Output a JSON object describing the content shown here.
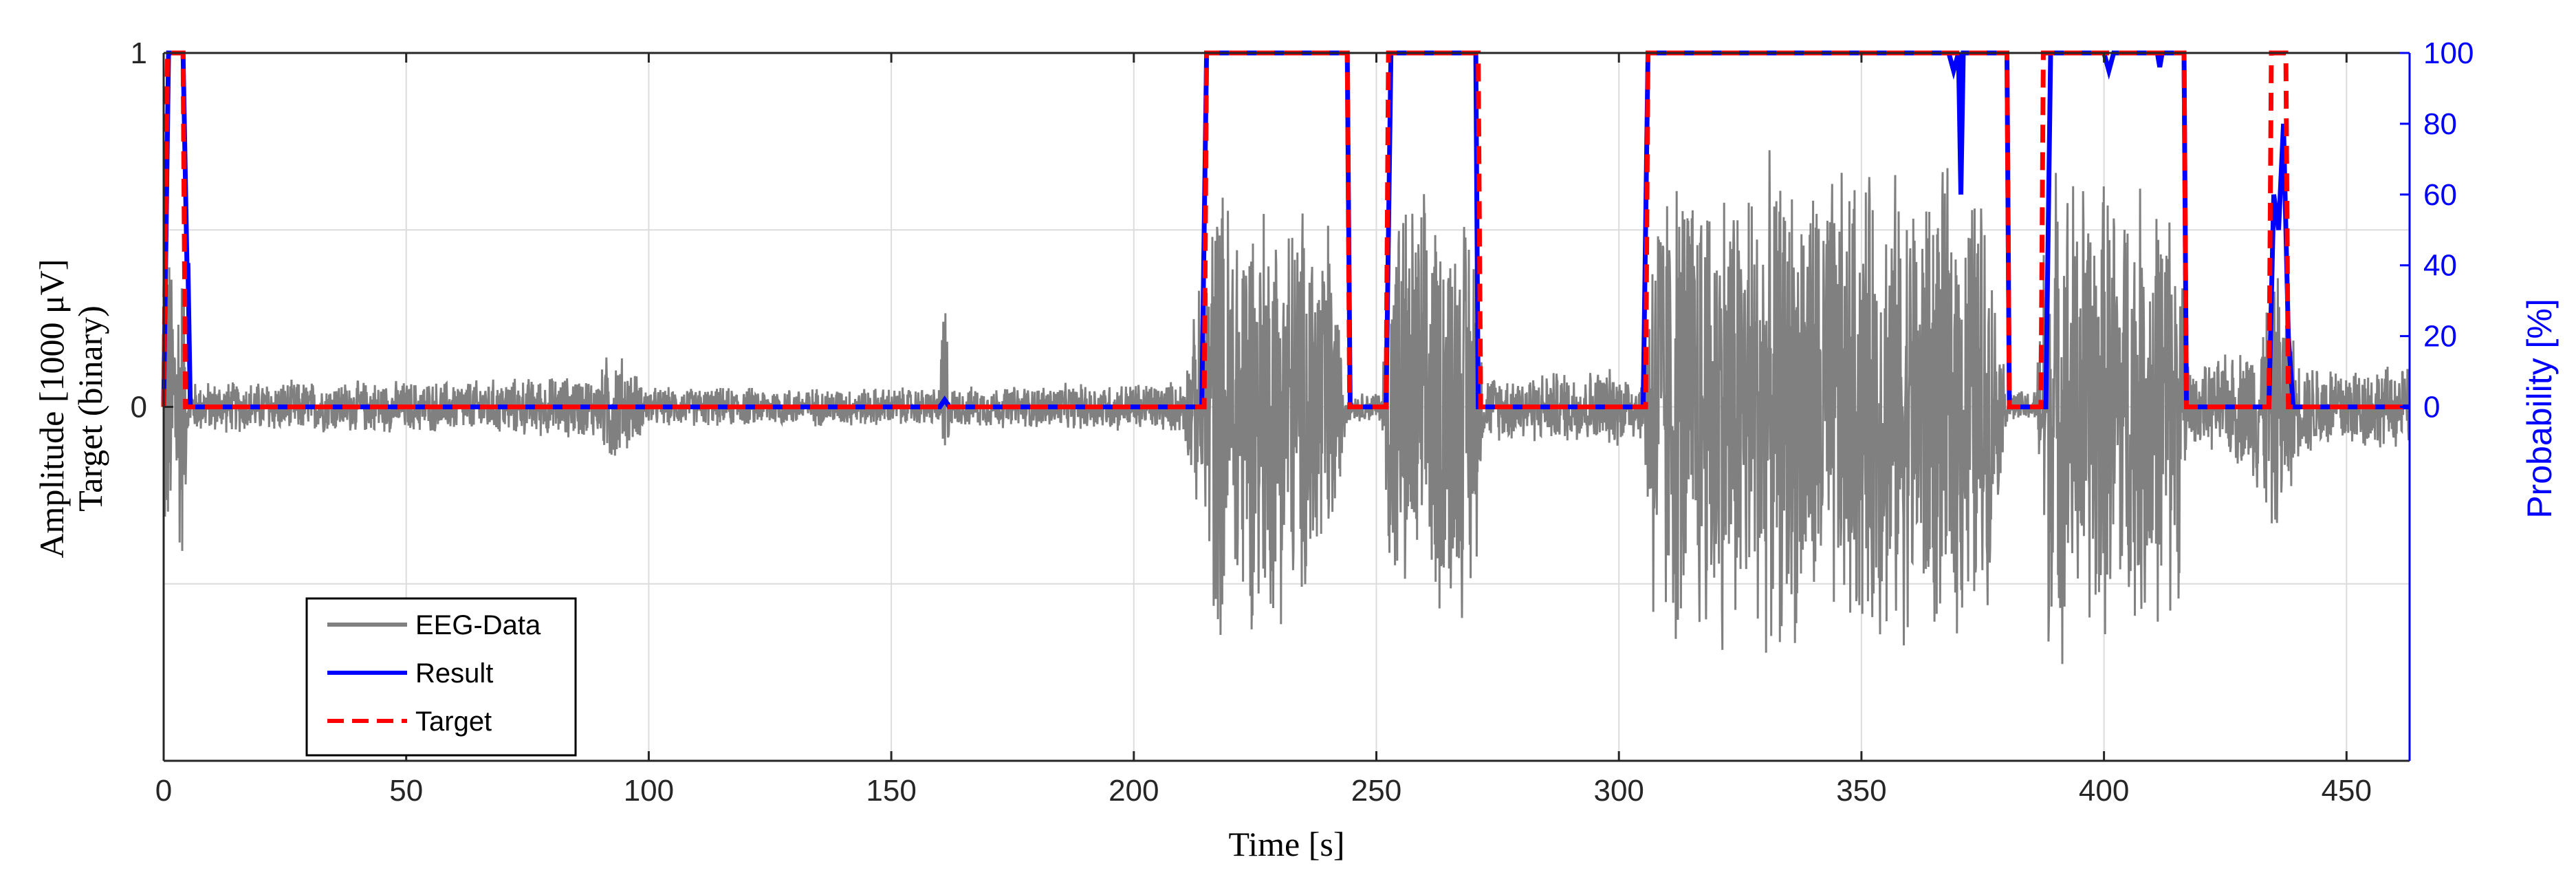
{
  "chart_data": {
    "type": "line",
    "xlabel": "Time [s]",
    "ylabel_left_line1": "Amplitude [1000 μV]",
    "ylabel_left_line2": "Target (binary)",
    "ylabel_right": "Probability [%]",
    "xlim": [
      0,
      463
    ],
    "ylim_left": [
      -1,
      1
    ],
    "ylim_right": [
      -100,
      100
    ],
    "x_ticks": [
      0,
      50,
      100,
      150,
      200,
      250,
      300,
      350,
      400,
      450
    ],
    "y_ticks_left": [
      0,
      1
    ],
    "y_ticks_right": [
      0,
      20,
      40,
      60,
      80,
      100
    ],
    "grid": true,
    "legend_position": "bottom-left",
    "colors": {
      "eeg": "#808080",
      "result": "#0000ff",
      "target": "#ff0000",
      "right_axis": "#0000ff"
    },
    "series": [
      {
        "name": "EEG-Data",
        "axis": "left",
        "description_points": "envelope estimate [x, amplitude]",
        "envelope": [
          [
            0,
            0.5
          ],
          [
            4,
            0.5
          ],
          [
            5,
            0.08
          ],
          [
            60,
            0.08
          ],
          [
            90,
            0.1
          ],
          [
            92,
            0.2
          ],
          [
            100,
            0.06
          ],
          [
            160,
            0.06
          ],
          [
            161,
            0.5
          ],
          [
            162,
            0.06
          ],
          [
            210,
            0.08
          ],
          [
            214,
            0.4
          ],
          [
            216,
            0.7
          ],
          [
            240,
            0.6
          ],
          [
            244,
            0.04
          ],
          [
            251,
            0.05
          ],
          [
            253,
            0.65
          ],
          [
            270,
            0.62
          ],
          [
            272,
            0.1
          ],
          [
            300,
            0.12
          ],
          [
            305,
            0.1
          ],
          [
            307,
            0.75
          ],
          [
            375,
            0.7
          ],
          [
            380,
            0.05
          ],
          [
            386,
            0.05
          ],
          [
            388,
            0.75
          ],
          [
            415,
            0.65
          ],
          [
            418,
            0.1
          ],
          [
            430,
            0.2
          ],
          [
            436,
            0.45
          ],
          [
            440,
            0.15
          ],
          [
            463,
            0.12
          ]
        ]
      },
      {
        "name": "Result",
        "axis": "right",
        "points": [
          [
            0,
            0
          ],
          [
            1,
            100
          ],
          [
            4,
            100
          ],
          [
            4.8,
            40
          ],
          [
            5,
            40
          ],
          [
            5.5,
            0
          ],
          [
            160,
            0
          ],
          [
            161,
            2
          ],
          [
            162,
            0
          ],
          [
            214,
            0
          ],
          [
            215,
            100
          ],
          [
            244,
            100
          ],
          [
            244.6,
            0
          ],
          [
            252,
            0
          ],
          [
            253,
            100
          ],
          [
            270.5,
            100
          ],
          [
            271,
            0
          ],
          [
            305,
            0
          ],
          [
            306,
            100
          ],
          [
            368,
            100
          ],
          [
            369,
            95
          ],
          [
            370,
            100
          ],
          [
            370.5,
            60
          ],
          [
            371,
            100
          ],
          [
            380,
            100
          ],
          [
            380.5,
            0
          ],
          [
            388,
            0
          ],
          [
            389,
            100
          ],
          [
            400,
            100
          ],
          [
            401,
            95
          ],
          [
            402,
            100
          ],
          [
            411,
            100
          ],
          [
            411.5,
            96
          ],
          [
            412,
            100
          ],
          [
            416.5,
            100
          ],
          [
            417,
            0
          ],
          [
            434,
            0
          ],
          [
            435,
            60
          ],
          [
            436,
            50
          ],
          [
            437,
            80
          ],
          [
            438,
            20
          ],
          [
            439,
            0
          ],
          [
            463,
            0
          ]
        ]
      },
      {
        "name": "Target",
        "axis": "left",
        "points": [
          [
            0,
            0
          ],
          [
            0.8,
            1
          ],
          [
            4,
            1
          ],
          [
            4.5,
            0
          ],
          [
            214.5,
            0
          ],
          [
            215,
            1
          ],
          [
            244,
            1
          ],
          [
            244.5,
            0
          ],
          [
            252,
            0
          ],
          [
            252.5,
            1
          ],
          [
            271,
            1
          ],
          [
            271.5,
            0
          ],
          [
            305.5,
            0
          ],
          [
            306,
            1
          ],
          [
            380,
            1
          ],
          [
            380.5,
            0
          ],
          [
            387,
            0
          ],
          [
            387.5,
            1
          ],
          [
            416.5,
            1
          ],
          [
            417,
            0
          ],
          [
            434,
            0
          ],
          [
            434.5,
            1
          ],
          [
            437.5,
            1
          ],
          [
            438,
            0
          ],
          [
            463,
            0
          ]
        ]
      }
    ]
  }
}
